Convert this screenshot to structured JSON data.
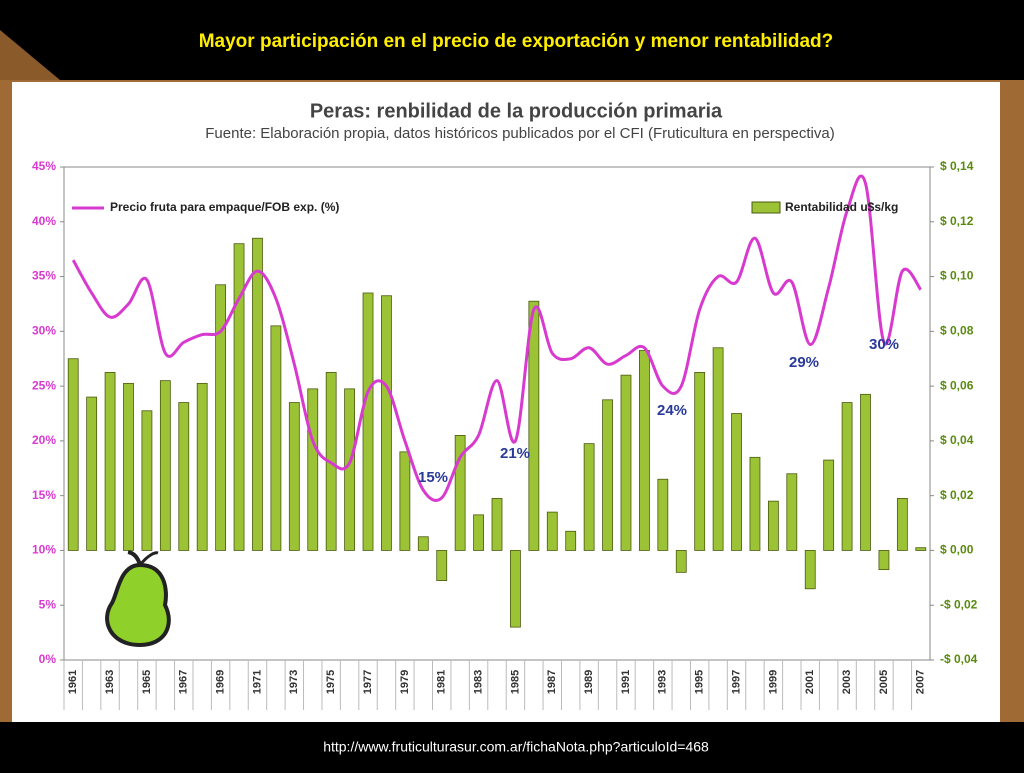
{
  "slide": {
    "title": "Mayor participación en el precio de exportación y menor rentabilidad?",
    "url": "http://www.fruticulturasur.com.ar/fichaNota.php?articuloId=468"
  },
  "chart_data": {
    "type": "bar_line",
    "title": "Peras: renbilidad de la producción primaria",
    "subtitle": "Fuente: Elaboración propia, datos históricos publicados por el CFI (Fruticultura en perspectiva)",
    "categories": [
      "1961",
      null,
      "1963",
      null,
      "1965",
      null,
      "1967",
      null,
      "1969",
      null,
      "1971",
      null,
      "1973",
      null,
      "1975",
      null,
      "1977",
      null,
      "1979",
      null,
      "1981",
      null,
      "1983",
      null,
      "1985",
      null,
      "1987",
      null,
      "1989",
      null,
      "1991",
      null,
      "1993",
      null,
      "1995",
      null,
      "1997",
      null,
      "1999",
      null,
      "2001",
      null,
      "2003",
      null,
      "2005",
      null,
      "2007"
    ],
    "series": [
      {
        "name": "Precio fruta para empaque/FOB exp. (%)",
        "type": "line",
        "axis": "y",
        "color": "#d83ad0",
        "values": [
          36.5,
          33.5,
          31.3,
          32.5,
          34.7,
          28.0,
          29.0,
          29.7,
          30.0,
          33.0,
          35.5,
          33.0,
          27.0,
          20.0,
          18.0,
          18.0,
          24.5,
          25.0,
          20.0,
          15.5,
          14.8,
          18.5,
          20.5,
          25.5,
          20.0,
          32.0,
          28.0,
          27.5,
          28.5,
          27.0,
          27.8,
          28.5,
          25.0,
          25.0,
          32.0,
          35.0,
          34.5,
          38.5,
          33.5,
          34.5,
          28.8,
          34.0,
          41.0,
          43.5,
          29.0,
          35.5,
          33.8
        ]
      },
      {
        "name": "Rentabilidad u$s/kg",
        "type": "bar",
        "axis": "y2",
        "color": "#9cc236",
        "values": [
          0.07,
          0.056,
          0.065,
          0.061,
          0.051,
          0.062,
          0.054,
          0.061,
          0.097,
          0.112,
          0.114,
          0.082,
          0.054,
          0.059,
          0.065,
          0.059,
          0.094,
          0.093,
          0.036,
          0.005,
          -0.011,
          0.042,
          0.013,
          0.019,
          -0.028,
          0.091,
          0.014,
          0.007,
          0.039,
          0.055,
          0.064,
          0.073,
          0.026,
          -0.008,
          0.065,
          0.074,
          0.05,
          0.034,
          0.018,
          0.028,
          -0.014,
          0.033,
          0.054,
          0.057,
          -0.007,
          0.019,
          0.001
        ]
      }
    ],
    "ylim": [
      0,
      45
    ],
    "yticks": [
      {
        "value": 0,
        "label": "0%"
      },
      {
        "value": 5,
        "label": "5%"
      },
      {
        "value": 10,
        "label": "10%"
      },
      {
        "value": 15,
        "label": "15%"
      },
      {
        "value": 20,
        "label": "20%"
      },
      {
        "value": 25,
        "label": "25%"
      },
      {
        "value": 30,
        "label": "30%"
      },
      {
        "value": 35,
        "label": "35%"
      },
      {
        "value": 40,
        "label": "40%"
      },
      {
        "value": 45,
        "label": "45%"
      }
    ],
    "y2lim": [
      -0.04,
      0.14
    ],
    "y2ticks": [
      {
        "value": -0.04,
        "label": "-$ 0,04"
      },
      {
        "value": -0.02,
        "label": "-$ 0,02"
      },
      {
        "value": 0,
        "label": "$ 0,00"
      },
      {
        "value": 0.02,
        "label": "$ 0,02"
      },
      {
        "value": 0.04,
        "label": "$ 0,04"
      },
      {
        "value": 0.06,
        "label": "$ 0,06"
      },
      {
        "value": 0.08,
        "label": "$ 0,08"
      },
      {
        "value": 0.1,
        "label": "$ 0,10"
      },
      {
        "value": 0.12,
        "label": "$ 0,12"
      },
      {
        "value": 0.14,
        "label": "$ 0,14"
      }
    ],
    "annotations": [
      "15%",
      "21%",
      "24%",
      "29%",
      "30%"
    ]
  }
}
